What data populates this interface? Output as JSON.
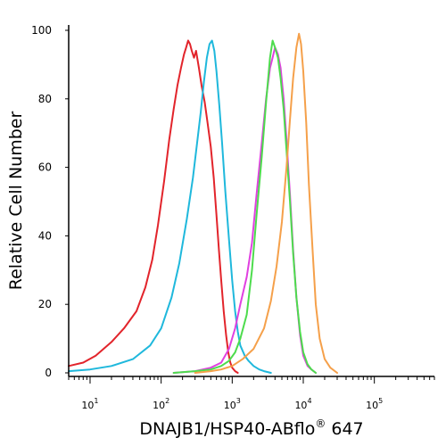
{
  "chart_data": {
    "type": "line",
    "title": "",
    "xlabel": "DNAJB1/HSP40-ABflo",
    "xlabel_superscript": "®",
    "xlabel_suffix": " 647",
    "ylabel": "Relative Cell Number",
    "x_scale": "log",
    "xlim": [
      5,
      700000
    ],
    "ylim": [
      0,
      100
    ],
    "x_tick_values": [
      10,
      100,
      1000,
      10000,
      100000
    ],
    "x_tick_labels": [
      {
        "base": "10",
        "exp": "1"
      },
      {
        "base": "10",
        "exp": "2"
      },
      {
        "base": "10",
        "exp": "3"
      },
      {
        "base": "10",
        "exp": "4"
      },
      {
        "base": "10",
        "exp": "5"
      }
    ],
    "y_ticks": [
      0,
      20,
      40,
      60,
      80,
      100
    ],
    "grid": false,
    "legend": "none",
    "series": [
      {
        "color": "#e2242b",
        "x": [
          5,
          8,
          12,
          20,
          30,
          45,
          60,
          75,
          90,
          110,
          130,
          150,
          170,
          190,
          210,
          225,
          240,
          255,
          270,
          290,
          310,
          340,
          370,
          410,
          450,
          500,
          550,
          600,
          650,
          700,
          760,
          820,
          880,
          940,
          1000,
          1100,
          1200
        ],
        "y": [
          2,
          3,
          5,
          9,
          13,
          18,
          25,
          33,
          43,
          56,
          68,
          77,
          84,
          89,
          93,
          95,
          97,
          96,
          94,
          92,
          94,
          89,
          84,
          79,
          73,
          66,
          57,
          46,
          36,
          27,
          18,
          11,
          6,
          3,
          1.5,
          0.5,
          0
        ]
      },
      {
        "color": "#1fb8dc",
        "x": [
          5,
          10,
          20,
          40,
          70,
          100,
          140,
          180,
          230,
          280,
          320,
          360,
          400,
          440,
          480,
          520,
          560,
          600,
          660,
          720,
          800,
          900,
          1000,
          1100,
          1200,
          1300,
          1500,
          1700,
          2000,
          2400,
          2800,
          3500
        ],
        "y": [
          0.5,
          1,
          2,
          4,
          8,
          13,
          22,
          32,
          45,
          57,
          67,
          76,
          85,
          92,
          96,
          97,
          94,
          88,
          78,
          67,
          53,
          39,
          27,
          18,
          12,
          8,
          5,
          3.5,
          2,
          1,
          0.5,
          0
        ]
      },
      {
        "color": "#e040e0",
        "x": [
          150,
          300,
          500,
          700,
          900,
          1100,
          1300,
          1600,
          1900,
          2200,
          2600,
          3000,
          3400,
          3700,
          4000,
          4400,
          4800,
          5300,
          5800,
          6500,
          7200,
          8000,
          9000,
          10000,
          11500,
          13000,
          15000
        ],
        "y": [
          0,
          0.5,
          1.5,
          3,
          7,
          13,
          20,
          28,
          38,
          52,
          67,
          80,
          89,
          92,
          95,
          93,
          89,
          80,
          68,
          52,
          36,
          22,
          11,
          5,
          2,
          1,
          0
        ]
      },
      {
        "color": "#4ddc4d",
        "x": [
          150,
          300,
          500,
          700,
          900,
          1100,
          1300,
          1600,
          1900,
          2200,
          2600,
          3000,
          3400,
          3700,
          4000,
          4400,
          4800,
          5300,
          5800,
          6500,
          7200,
          8000,
          9000,
          10000,
          11500,
          13000,
          15000
        ],
        "y": [
          0,
          0.5,
          1,
          2,
          3.5,
          6,
          10,
          17,
          30,
          46,
          63,
          79,
          92,
          97,
          95,
          92,
          86,
          77,
          65,
          50,
          35,
          22,
          12,
          6,
          2.5,
          1,
          0
        ]
      },
      {
        "color": "#f5a04a",
        "x": [
          300,
          500,
          700,
          1000,
          1400,
          2000,
          2800,
          3500,
          4200,
          5000,
          5800,
          6500,
          7200,
          8000,
          8700,
          9300,
          10000,
          11000,
          12000,
          13500,
          15000,
          17000,
          20000,
          24000,
          30000
        ],
        "y": [
          0,
          0.5,
          1,
          2,
          4,
          7,
          13,
          21,
          31,
          44,
          60,
          74,
          86,
          95,
          99,
          96,
          88,
          73,
          55,
          36,
          20,
          10,
          4,
          1.5,
          0
        ]
      }
    ]
  }
}
